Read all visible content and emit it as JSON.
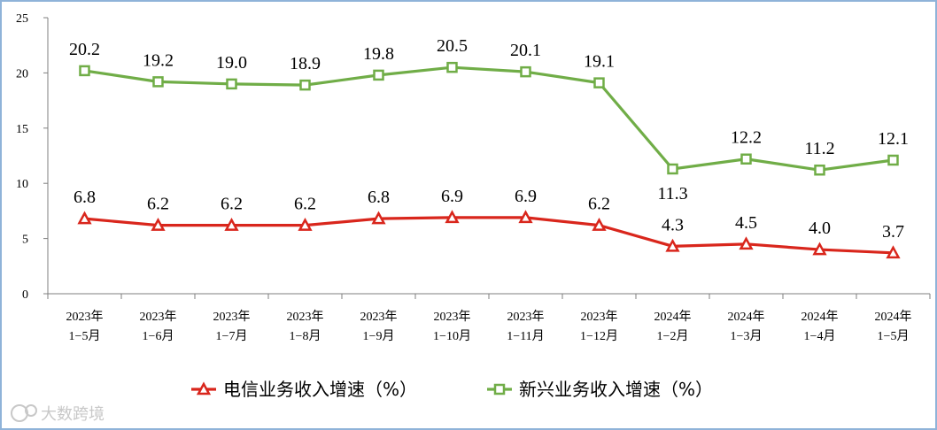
{
  "chart_data": {
    "type": "line",
    "categories": [
      [
        "2023年",
        "1−5月"
      ],
      [
        "2023年",
        "1−6月"
      ],
      [
        "2023年",
        "1−7月"
      ],
      [
        "2023年",
        "1−8月"
      ],
      [
        "2023年",
        "1−9月"
      ],
      [
        "2023年",
        "1−10月"
      ],
      [
        "2023年",
        "1−11月"
      ],
      [
        "2023年",
        "1−12月"
      ],
      [
        "2024年",
        "1−2月"
      ],
      [
        "2024年",
        "1−3月"
      ],
      [
        "2024年",
        "1−4月"
      ],
      [
        "2024年",
        "1−5月"
      ]
    ],
    "series": [
      {
        "name": "电信业务收入增速（%）",
        "color": "#d9261c",
        "marker": "triangle",
        "values": [
          6.8,
          6.2,
          6.2,
          6.2,
          6.8,
          6.9,
          6.9,
          6.2,
          4.3,
          4.5,
          4.0,
          3.7
        ]
      },
      {
        "name": "新兴业务收入增速（%）",
        "color": "#70ad47",
        "marker": "square",
        "values": [
          20.2,
          19.2,
          19.0,
          18.9,
          19.8,
          20.5,
          20.1,
          19.1,
          11.3,
          12.2,
          11.2,
          12.1
        ]
      }
    ],
    "ylim": [
      0,
      25
    ],
    "yticks": [
      0,
      5,
      10,
      15,
      20,
      25
    ],
    "grid": false,
    "legend_position": "bottom"
  },
  "watermark": "大数跨境"
}
